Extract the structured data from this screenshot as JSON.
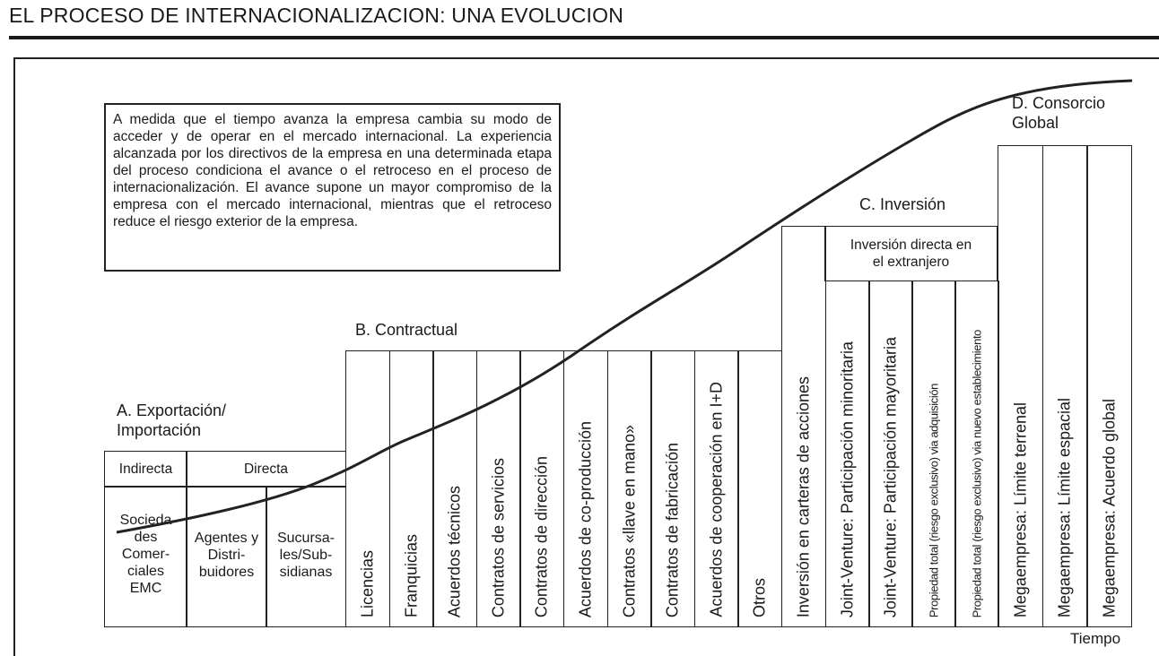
{
  "title": "EL PROCESO DE INTERNACIONALIZACION: UNA EVOLUCION",
  "note": "A medida que el tiempo avanza la empresa cambia su modo de acceder y de operar en el mercado internacional. La experiencia alcanzada por los directivos de la empresa en una determinada etapa del proceso condiciona el avance o el retroceso en el proceso de internacionalización. El avance supone un mayor compromiso de la empresa con el mercado internacional, mientras que el retroceso reduce el riesgo exterior de la empresa.",
  "stages": {
    "a": {
      "label": "A. Exportación/ Importación",
      "groups": [
        "Indirecta",
        "Directa"
      ],
      "items": [
        "Socieda des Comer- ciales EMC",
        "Agentes y Distri- buidores",
        "Sucursa- les/Sub- sidianas"
      ]
    },
    "b": {
      "label": "B. Contractual",
      "items": [
        "Licencias",
        "Franquicias",
        "Acuerdos técnicos",
        "Contratos de servicios",
        "Contratos de dirección",
        "Acuerdos de co-producción",
        "Contratos «llave en mano»",
        "Contratos de fabricación",
        "Acuerdos de cooperación en I+D",
        "Otros"
      ]
    },
    "c": {
      "label": "C. Inversión",
      "portfolio": "Inversión en carteras de acciones",
      "group": "Inversión directa en el extranjero",
      "items": [
        "Joint-Venture: Participación minoritaria",
        "Joint-Venture: Participación mayoritaria",
        "Propiedad total (riesgo exclusivo) via adquisición",
        "Propiedad total (riesgo exclusivo) via nuevo establecimiento"
      ]
    },
    "d": {
      "label": "D. Consorcio Global",
      "items": [
        "Megaempresa: Límite terrenal",
        "Megaempresa: Límite espacial",
        "Megaempresa: Acuerdo global"
      ]
    }
  },
  "axis_label": "Tiempo"
}
